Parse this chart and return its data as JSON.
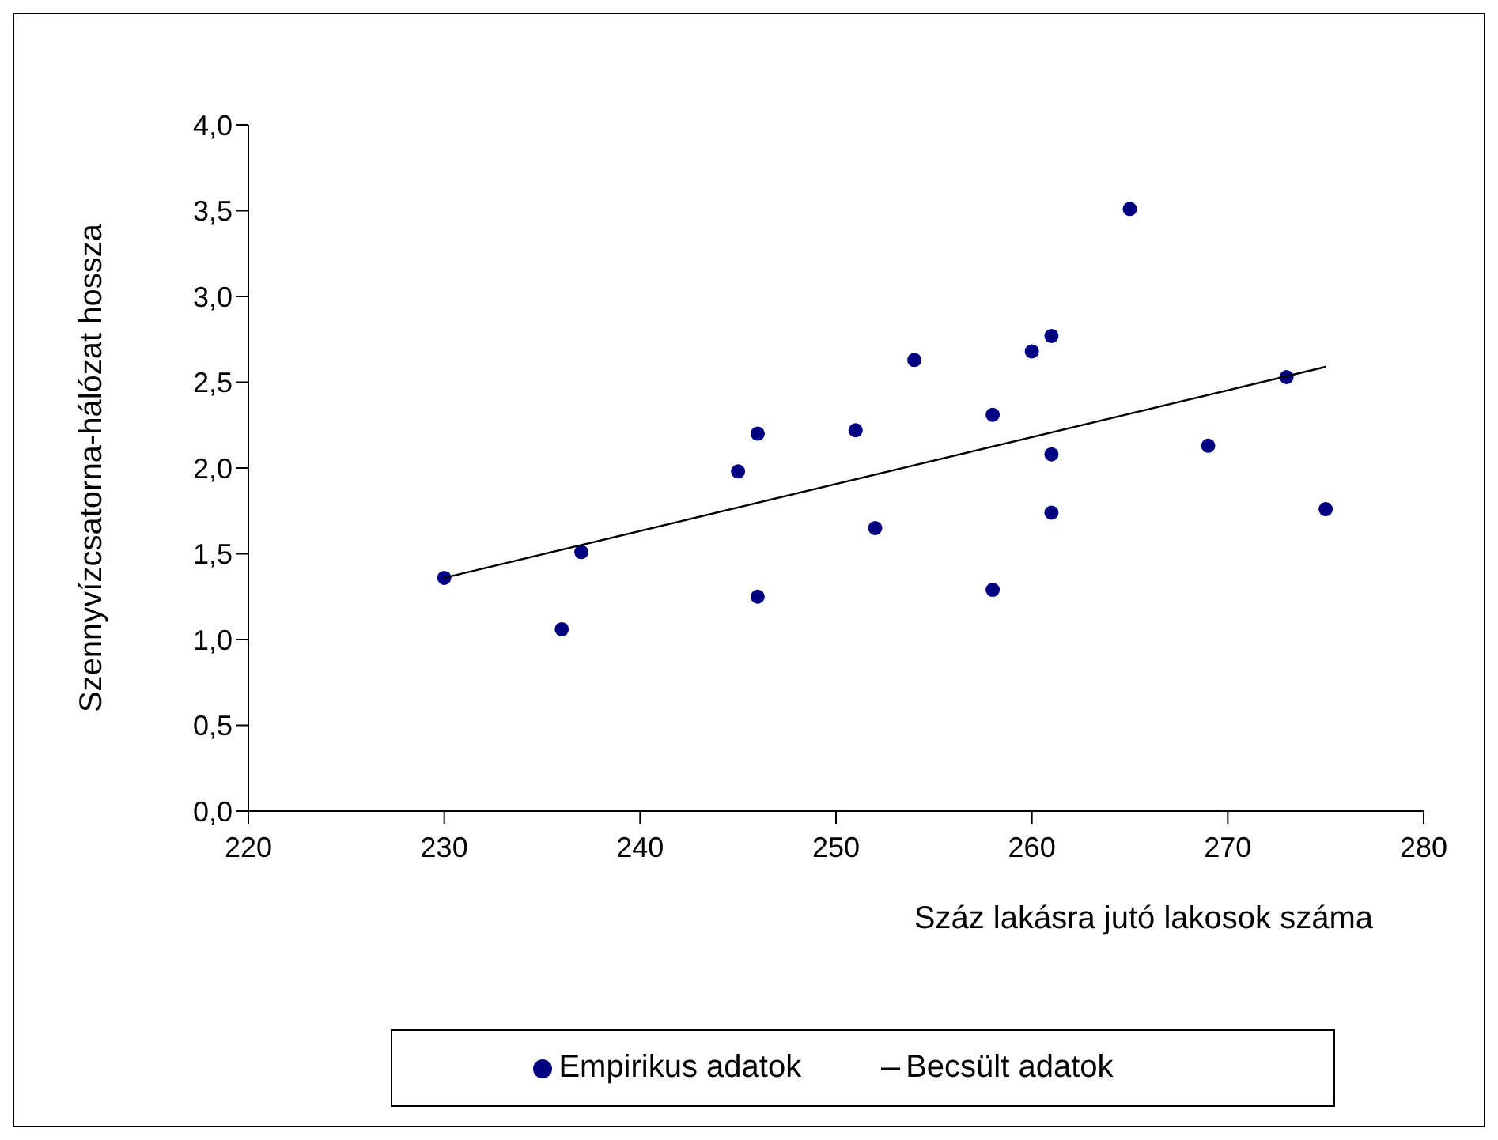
{
  "chart_data": {
    "type": "scatter",
    "xlabel": "Száz lakásra jutó lakosok száma",
    "ylabel": "Szennyvízcsatorna-hálózat hossza",
    "xlim": [
      220,
      280
    ],
    "xticks": [
      220,
      230,
      240,
      250,
      260,
      270,
      280
    ],
    "ylim": [
      0,
      4
    ],
    "yticks": [
      {
        "value": 0,
        "label": "0,0"
      },
      {
        "value": 0.5,
        "label": "0,5"
      },
      {
        "value": 1,
        "label": "1,0"
      },
      {
        "value": 1.5,
        "label": "1,5"
      },
      {
        "value": 2,
        "label": "2,0"
      },
      {
        "value": 2.5,
        "label": "2,5"
      },
      {
        "value": 3,
        "label": "3,0"
      },
      {
        "value": 3.5,
        "label": "3,5"
      },
      {
        "value": 4,
        "label": "4,0"
      }
    ],
    "grid": false,
    "legend": "bottom",
    "series": [
      {
        "name": "Empirikus adatok",
        "type": "scatter",
        "marker": "circle",
        "color": "#000080",
        "x": [
          230,
          236,
          237,
          245,
          246,
          246,
          251,
          252,
          254,
          258,
          258,
          260,
          261,
          261,
          261,
          265,
          269,
          273,
          275
        ],
        "values": [
          1.36,
          1.06,
          1.51,
          1.98,
          2.2,
          1.25,
          2.22,
          1.65,
          2.63,
          2.31,
          1.29,
          2.68,
          2.77,
          2.08,
          1.74,
          3.51,
          2.13,
          2.53,
          1.76
        ]
      },
      {
        "name": "Becsült adatok",
        "type": "line",
        "marker": "none",
        "color": "#000000",
        "x": [
          230,
          275
        ],
        "values": [
          1.36,
          2.59
        ]
      }
    ]
  }
}
